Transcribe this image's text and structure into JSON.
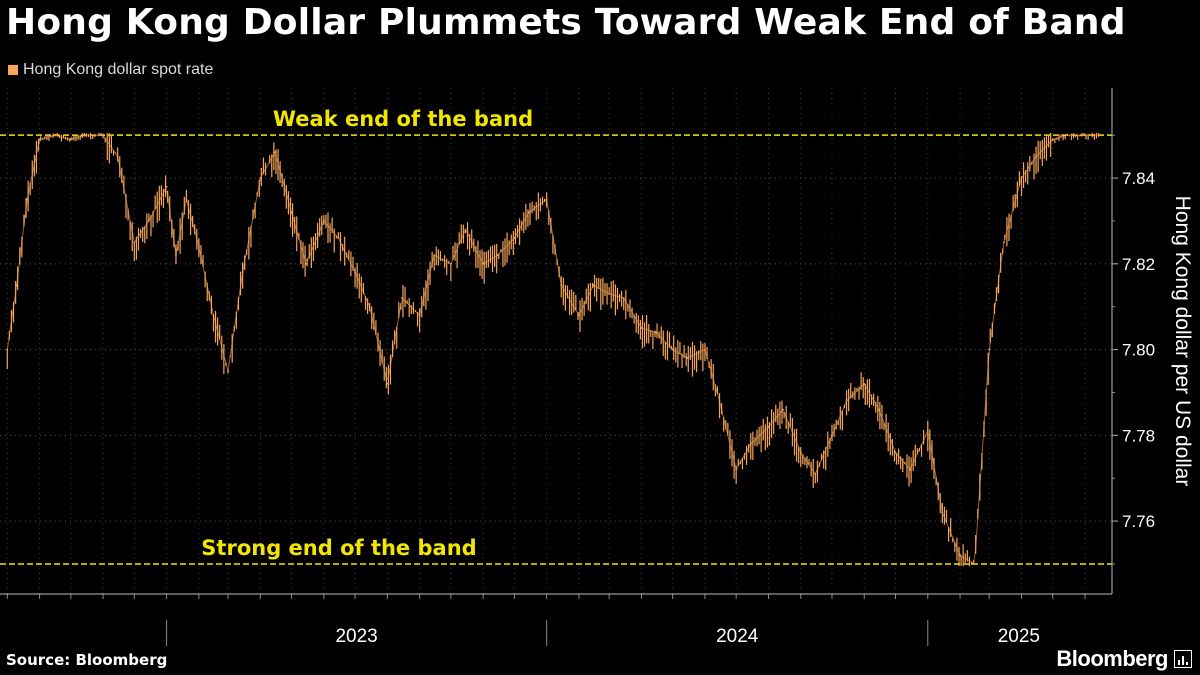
{
  "colors": {
    "background": "#000000",
    "series": "#f5a55a",
    "band": "#f0e600",
    "grid": "#555555",
    "text": "#ffffff"
  },
  "header": {
    "title": "Hong Kong Dollar Plummets Toward Weak End of Band"
  },
  "legend": {
    "label": "Hong Kong dollar spot rate"
  },
  "footer": {
    "source": "Source: Bloomberg",
    "brand": "Bloomberg",
    "brand_icon": "bloomberg-terminal-icon"
  },
  "chart_data": {
    "type": "line",
    "title": "Hong Kong Dollar Plummets Toward Weak End of Band",
    "ylabel": "Hong Kong dollar per US dollar",
    "xlabel": "",
    "y_axis_position": "right",
    "ylim": [
      7.743,
      7.861
    ],
    "yticks": [
      7.76,
      7.78,
      7.8,
      7.82,
      7.84
    ],
    "x_labels": [
      "2023",
      "2024",
      "2025"
    ],
    "grid": true,
    "legend_position": "top-left",
    "reference_lines": [
      {
        "value": 7.85,
        "label": "Weak end of the band"
      },
      {
        "value": 7.75,
        "label": "Strong end of the band"
      }
    ],
    "series": [
      {
        "name": "Hong Kong dollar spot rate",
        "x": [
          "2022-08-01",
          "2022-08-10",
          "2022-08-20",
          "2022-09-01",
          "2022-09-15",
          "2022-10-01",
          "2022-10-15",
          "2022-11-01",
          "2022-11-15",
          "2022-12-01",
          "2022-12-15",
          "2023-01-01",
          "2023-01-10",
          "2023-01-20",
          "2023-02-01",
          "2023-02-15",
          "2023-03-01",
          "2023-03-15",
          "2023-04-01",
          "2023-04-15",
          "2023-05-01",
          "2023-05-15",
          "2023-06-01",
          "2023-06-15",
          "2023-07-01",
          "2023-07-15",
          "2023-08-01",
          "2023-08-15",
          "2023-09-01",
          "2023-09-15",
          "2023-10-01",
          "2023-10-15",
          "2023-11-01",
          "2023-11-15",
          "2023-12-01",
          "2023-12-15",
          "2024-01-01",
          "2024-01-15",
          "2024-02-01",
          "2024-02-15",
          "2024-03-01",
          "2024-03-15",
          "2024-04-01",
          "2024-04-15",
          "2024-05-01",
          "2024-05-15",
          "2024-06-01",
          "2024-06-15",
          "2024-07-01",
          "2024-07-15",
          "2024-08-01",
          "2024-08-15",
          "2024-09-01",
          "2024-09-15",
          "2024-10-01",
          "2024-10-15",
          "2024-11-01",
          "2024-11-15",
          "2024-12-01",
          "2024-12-15",
          "2025-01-01",
          "2025-01-15",
          "2025-02-01",
          "2025-02-15",
          "2025-03-01",
          "2025-03-15",
          "2025-04-01",
          "2025-04-15",
          "2025-05-01",
          "2025-05-15",
          "2025-06-01",
          "2025-06-15"
        ],
        "values": [
          7.8,
          7.815,
          7.835,
          7.849,
          7.85,
          7.849,
          7.85,
          7.85,
          7.845,
          7.825,
          7.83,
          7.838,
          7.822,
          7.835,
          7.824,
          7.808,
          7.795,
          7.818,
          7.84,
          7.846,
          7.832,
          7.82,
          7.83,
          7.826,
          7.818,
          7.81,
          7.792,
          7.812,
          7.808,
          7.822,
          7.82,
          7.828,
          7.82,
          7.822,
          7.826,
          7.832,
          7.835,
          7.815,
          7.808,
          7.815,
          7.813,
          7.812,
          7.805,
          7.804,
          7.8,
          7.798,
          7.8,
          7.788,
          7.772,
          7.778,
          7.782,
          7.786,
          7.776,
          7.771,
          7.78,
          7.788,
          7.792,
          7.786,
          7.776,
          7.772,
          7.781,
          7.762,
          7.752,
          7.75,
          7.8,
          7.825,
          7.84,
          7.845,
          7.849,
          7.85,
          7.85,
          7.85
        ]
      }
    ]
  }
}
